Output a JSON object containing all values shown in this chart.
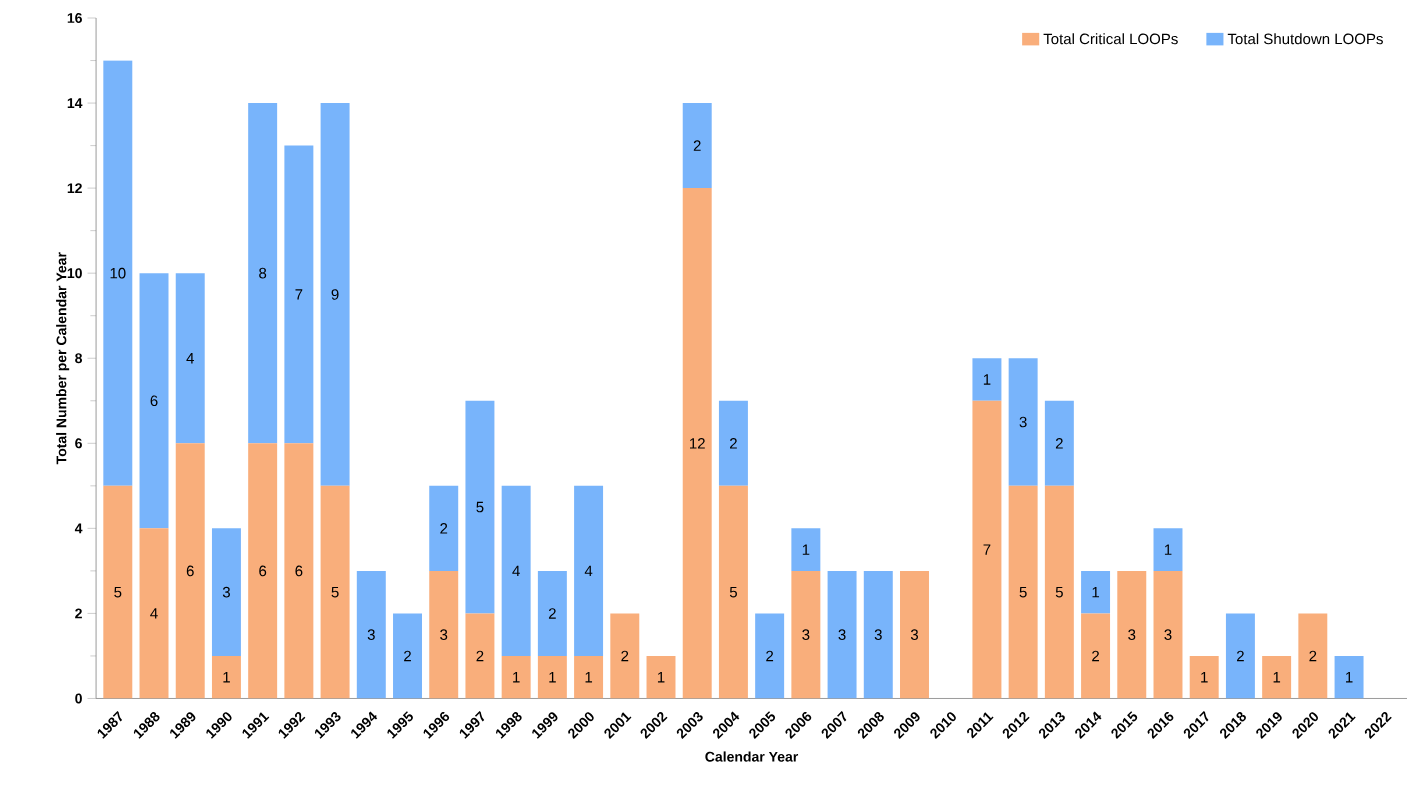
{
  "chart_data": {
    "type": "bar",
    "stacked": true,
    "xlabel": "Calendar Year",
    "ylabel": "Total Number per Calendar Year",
    "categories": [
      "1987",
      "1988",
      "1989",
      "1990",
      "1991",
      "1992",
      "1993",
      "1994",
      "1995",
      "1996",
      "1997",
      "1998",
      "1999",
      "2000",
      "2001",
      "2002",
      "2003",
      "2004",
      "2005",
      "2006",
      "2007",
      "2008",
      "2009",
      "2010",
      "2011",
      "2012",
      "2013",
      "2014",
      "2015",
      "2016",
      "2017",
      "2018",
      "2019",
      "2020",
      "2021",
      "2022"
    ],
    "series": [
      {
        "name": "Total Critical LOOPs",
        "color": "#f9ae7b",
        "values": [
          5,
          4,
          6,
          1,
          6,
          6,
          5,
          0,
          0,
          3,
          2,
          1,
          1,
          1,
          2,
          1,
          12,
          5,
          0,
          3,
          0,
          0,
          3,
          0,
          7,
          5,
          5,
          2,
          3,
          3,
          1,
          0,
          1,
          2,
          0,
          0
        ],
        "value_labels": [
          "5",
          "4",
          "6",
          "1",
          "6",
          "6",
          "5",
          null,
          null,
          "3",
          "2",
          "1",
          "1",
          "1",
          "2",
          "1",
          "12",
          "5",
          null,
          "3",
          null,
          null,
          "3",
          null,
          "7",
          "5",
          "5",
          "2",
          "3",
          "3",
          "1",
          null,
          "1",
          "2",
          null,
          null
        ]
      },
      {
        "name": "Total Shutdown LOOPs",
        "color": "#78b4fb",
        "values": [
          10,
          6,
          4,
          3,
          8,
          7,
          9,
          3,
          2,
          2,
          5,
          4,
          2,
          4,
          0,
          0,
          2,
          2,
          2,
          1,
          3,
          3,
          0,
          0,
          1,
          3,
          2,
          1,
          0,
          1,
          0,
          2,
          0,
          0,
          1,
          0
        ],
        "value_labels": [
          "10",
          "6",
          "4",
          "3",
          "8",
          "7",
          "9",
          "3",
          "2",
          "2",
          "5",
          "4",
          "2",
          "4",
          null,
          null,
          "2",
          "2",
          "2",
          "1",
          "3",
          "3",
          null,
          null,
          "1",
          "3",
          "2",
          "1",
          null,
          "1",
          null,
          "2",
          null,
          null,
          "1",
          null
        ]
      }
    ],
    "ylim": [
      0,
      16
    ],
    "yticks": [
      0,
      2,
      4,
      6,
      8,
      10,
      12,
      14,
      16
    ],
    "grid": false,
    "legend": "top right"
  }
}
